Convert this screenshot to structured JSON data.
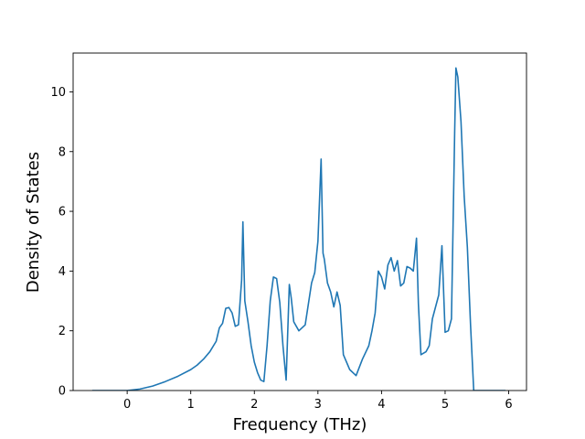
{
  "chart_data": {
    "type": "line",
    "title": "",
    "xlabel": "Frequency (THz)",
    "ylabel": "Density of States",
    "xlim": [
      -0.85,
      6.28
    ],
    "ylim": [
      0,
      11.3
    ],
    "xticks": [
      0,
      1,
      2,
      3,
      4,
      5,
      6
    ],
    "yticks": [
      0,
      2,
      4,
      6,
      8,
      10
    ],
    "grid": false,
    "legend": "none",
    "line_color": "#1f77b4",
    "series": [
      {
        "x": [
          -0.55,
          -0.3,
          0.0,
          0.2,
          0.4,
          0.6,
          0.8,
          1.0,
          1.1,
          1.2,
          1.3,
          1.4,
          1.45,
          1.5,
          1.55,
          1.6,
          1.65,
          1.7,
          1.75,
          1.8,
          1.82,
          1.85,
          1.9,
          1.95,
          2.0,
          2.05,
          2.1,
          2.15,
          2.2,
          2.25,
          2.3,
          2.35,
          2.4,
          2.45,
          2.5,
          2.55,
          2.58,
          2.62,
          2.7,
          2.8,
          2.85,
          2.9,
          2.95,
          3.0,
          3.05,
          3.08,
          3.1,
          3.15,
          3.2,
          3.25,
          3.3,
          3.35,
          3.4,
          3.5,
          3.6,
          3.7,
          3.8,
          3.85,
          3.9,
          3.95,
          4.0,
          4.05,
          4.1,
          4.15,
          4.2,
          4.25,
          4.3,
          4.35,
          4.4,
          4.45,
          4.5,
          4.55,
          4.58,
          4.62,
          4.7,
          4.75,
          4.8,
          4.9,
          4.95,
          5.0,
          5.05,
          5.1,
          5.15,
          5.17,
          5.2,
          5.25,
          5.3,
          5.35,
          5.4,
          5.45,
          5.6,
          5.95
        ],
        "y": [
          0.0,
          0.0,
          0.0,
          0.05,
          0.15,
          0.3,
          0.48,
          0.7,
          0.85,
          1.05,
          1.3,
          1.65,
          2.1,
          2.25,
          2.75,
          2.78,
          2.6,
          2.15,
          2.2,
          3.7,
          5.65,
          3.0,
          2.3,
          1.5,
          0.95,
          0.6,
          0.35,
          0.3,
          1.5,
          3.0,
          3.8,
          3.75,
          2.95,
          1.5,
          0.35,
          3.55,
          3.1,
          2.3,
          2.0,
          2.2,
          2.9,
          3.6,
          3.95,
          5.0,
          7.75,
          4.6,
          4.4,
          3.6,
          3.3,
          2.8,
          3.3,
          2.85,
          1.2,
          0.7,
          0.5,
          1.05,
          1.5,
          2.0,
          2.6,
          4.0,
          3.8,
          3.4,
          4.2,
          4.45,
          4.0,
          4.35,
          3.5,
          3.6,
          4.15,
          4.1,
          4.0,
          5.1,
          2.9,
          1.2,
          1.3,
          1.5,
          2.4,
          3.2,
          4.85,
          1.95,
          2.0,
          2.4,
          8.6,
          10.8,
          10.5,
          9.0,
          6.5,
          4.8,
          2.2,
          0.0,
          0.0,
          0.0
        ]
      }
    ]
  }
}
